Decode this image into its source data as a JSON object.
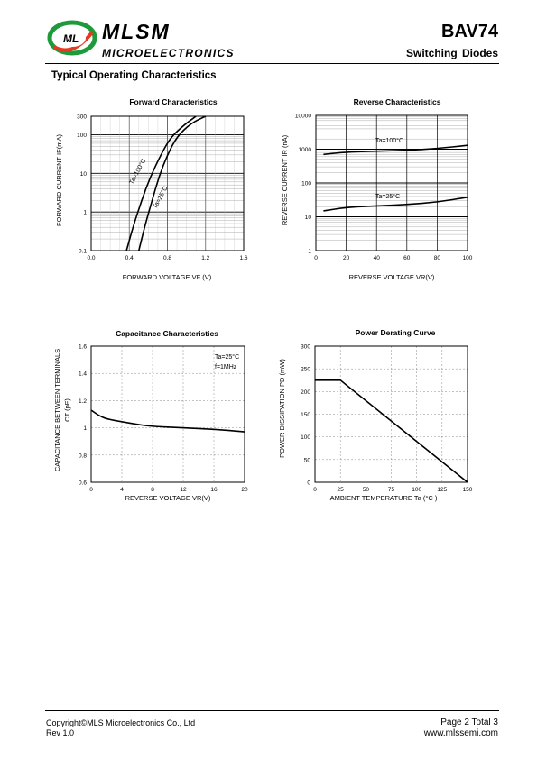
{
  "header": {
    "brand": "MLSM",
    "brand_sub": "MICROELECTRONICS",
    "part_number": "BAV74",
    "subtitle": "Switching  Diodes",
    "logo_letters": "ML",
    "section_title": "Typical Operating Characteristics"
  },
  "footer": {
    "copyright": "Copyright©MLS Microelectronics Co., Ltd",
    "rev": "Rev 1.0",
    "page": "Page 2 Total 3",
    "url": "www.mlssemi.com"
  },
  "chart_data": [
    {
      "type": "line",
      "title": "Forward  Characteristics",
      "xlabel": "FORWARD VOLTAGE  VF (V)",
      "ylabel": "FORWARD CURRENT   IF(mA)",
      "xlim": [
        0.0,
        1.6
      ],
      "ylim": [
        0.1,
        300
      ],
      "yscale": "log",
      "x_ticks": [
        "0.0",
        "0.4",
        "0.8",
        "1.2",
        "1.6"
      ],
      "y_ticks": [
        "0.1",
        "1",
        "10",
        "100",
        "300"
      ],
      "grid": true,
      "series": [
        {
          "name": "Ta=100°C",
          "x": [
            0.37,
            0.45,
            0.53,
            0.62,
            0.73,
            0.84,
            1.0,
            1.1
          ],
          "y": [
            0.1,
            0.5,
            2,
            8,
            30,
            90,
            200,
            300
          ]
        },
        {
          "name": "Ta=25°C",
          "x": [
            0.5,
            0.57,
            0.64,
            0.71,
            0.8,
            0.9,
            1.05,
            1.2
          ],
          "y": [
            0.1,
            0.5,
            2,
            8,
            30,
            90,
            200,
            300
          ]
        }
      ]
    },
    {
      "type": "line",
      "title": "Reverse  Characteristics",
      "xlabel": "REVERSE VOLTAGE     VR(V)",
      "ylabel": "REVERSE CURRENT   IR  (nA)",
      "xlim": [
        0,
        100
      ],
      "ylim": [
        1,
        10000
      ],
      "yscale": "log",
      "x_ticks": [
        "0",
        "20",
        "40",
        "60",
        "80",
        "100"
      ],
      "y_ticks": [
        "1",
        "10",
        "100",
        "1000",
        "10000"
      ],
      "grid": true,
      "series": [
        {
          "name": "Ta=100°C",
          "x": [
            5,
            20,
            40,
            60,
            80,
            100
          ],
          "y": [
            700,
            820,
            880,
            920,
            1050,
            1300
          ]
        },
        {
          "name": "Ta=25°C",
          "x": [
            5,
            20,
            40,
            60,
            80,
            100
          ],
          "y": [
            15,
            19,
            21,
            23,
            27,
            38
          ]
        }
      ]
    },
    {
      "type": "line",
      "title": "Capacitance Characteristics",
      "xlabel": "REVERSE VOLTAGE    VR(V)",
      "ylabel": "CAPACITANCE BETWEEN TERMINALS",
      "ylabel2": "CT (pF)",
      "xlim": [
        0,
        20
      ],
      "ylim": [
        0.6,
        1.6
      ],
      "x_ticks": [
        "0",
        "4",
        "8",
        "12",
        "16",
        "20"
      ],
      "y_ticks": [
        "0.6",
        "0.8",
        "1",
        "1.2",
        "1.4",
        "1.6"
      ],
      "grid": true,
      "annotations": [
        "Ta=25°C",
        "f=1MHz"
      ],
      "series": [
        {
          "x": [
            0,
            1,
            2,
            4,
            6,
            8,
            12,
            16,
            20
          ],
          "y": [
            1.13,
            1.09,
            1.065,
            1.045,
            1.025,
            1.01,
            1.0,
            0.99,
            0.97
          ]
        }
      ]
    },
    {
      "type": "line",
      "title": "Power Derating Curve",
      "xlabel": "AMBIENT TEMPERATURE     Ta   (°C )",
      "ylabel": "POWER  DISSIPATION  PD  (mW)",
      "xlim": [
        0,
        150
      ],
      "ylim": [
        0,
        300
      ],
      "x_ticks": [
        "0",
        "25",
        "50",
        "75",
        "100",
        "125",
        "150"
      ],
      "y_ticks": [
        "0",
        "50",
        "100",
        "150",
        "200",
        "250",
        "300"
      ],
      "grid": true,
      "series": [
        {
          "x": [
            0,
            25,
            150
          ],
          "y": [
            225,
            225,
            0
          ]
        }
      ]
    }
  ]
}
